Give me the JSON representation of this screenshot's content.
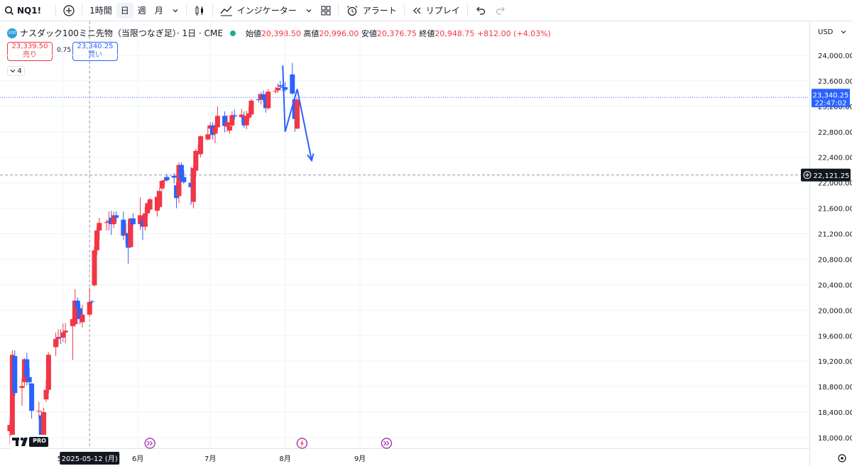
{
  "toolbar": {
    "symbol": "NQ1!",
    "timeframe": "1時間",
    "day": "日",
    "week": "週",
    "month": "月",
    "indicators": "インジケーター",
    "alert": "アラート",
    "replay": "リプレイ"
  },
  "legend": {
    "badge": "100",
    "title": "ナスダック100ミニ先物（当限つなぎ足）· 1日 · CME",
    "open_label": "始値",
    "open": "20,398.50",
    "high_label": "高値",
    "high": "20,996.00",
    "low_label": "安値",
    "low": "20,376.75",
    "close_label": "終値",
    "close": "20,948.75",
    "change": "+812.00 (+4.03%)"
  },
  "trade": {
    "sell_price": "23,339.50",
    "sell_label": "売り",
    "spread": "0.75",
    "buy_price": "23,340.25",
    "buy_label": "買い"
  },
  "collapse_count": "4",
  "currency": "USD",
  "logo_text": "PRO",
  "colors": {
    "up": "#f23645",
    "down": "#2962ff",
    "accent": "#2962ff",
    "event": "#9c27b0"
  },
  "chart_data": {
    "type": "candlestick",
    "y_ticks": [
      "24,000.00",
      "23,600.00",
      "23,200.00",
      "22,800.00",
      "22,400.00",
      "22,000.00",
      "21,600.00",
      "21,200.00",
      "20,800.00",
      "20,400.00",
      "20,000.00",
      "19,600.00",
      "19,200.00",
      "18,800.00",
      "18,400.00",
      "18,000.00"
    ],
    "y_range": [
      17900,
      24250
    ],
    "x_labels": [
      {
        "label": "5月",
        "date": "2025-05-01"
      },
      {
        "label": "6月",
        "date": "2025-06-01"
      },
      {
        "label": "7月",
        "date": "2025-07-01"
      },
      {
        "label": "8月",
        "date": "2025-08-01"
      },
      {
        "label": "9月",
        "date": "2025-09-01"
      }
    ],
    "crosshair_date_label": "2025-05-12 (月)",
    "last_price_label": "23,340.25",
    "last_price": 23340.25,
    "countdown": "22:47:02",
    "crosshair_price_label": "22,121.25",
    "crosshair_price": 22121.25,
    "events": [
      "earnings",
      "dividend",
      "earnings"
    ],
    "candles": [
      {
        "o": 18100,
        "h": 18280,
        "l": 17900,
        "c": 18200
      },
      {
        "o": 18000,
        "h": 19370,
        "l": 17870,
        "c": 19300
      },
      {
        "o": 19280,
        "h": 19370,
        "l": 18650,
        "c": 18700
      },
      {
        "o": 18780,
        "h": 18930,
        "l": 18500,
        "c": 18810
      },
      {
        "o": 18870,
        "h": 19250,
        "l": 18800,
        "c": 19230
      },
      {
        "o": 19230,
        "h": 19330,
        "l": 18820,
        "c": 18950
      },
      {
        "o": 18950,
        "h": 19100,
        "l": 18820,
        "c": 18870
      },
      {
        "o": 18850,
        "h": 18860,
        "l": 18300,
        "c": 18420
      },
      {
        "o": 18420,
        "h": 18560,
        "l": 18290,
        "c": 18420
      },
      {
        "o": 18350,
        "h": 18420,
        "l": 17870,
        "c": 18030
      },
      {
        "o": 17920,
        "h": 18470,
        "l": 17900,
        "c": 18400
      },
      {
        "o": 18600,
        "h": 18900,
        "l": 18560,
        "c": 18750
      },
      {
        "o": 18750,
        "h": 19340,
        "l": 18700,
        "c": 19300
      },
      {
        "o": 19420,
        "h": 19650,
        "l": 19280,
        "c": 19550
      },
      {
        "o": 19550,
        "h": 19700,
        "l": 19450,
        "c": 19580
      },
      {
        "o": 19580,
        "h": 19700,
        "l": 19470,
        "c": 19570
      },
      {
        "o": 19570,
        "h": 19790,
        "l": 19500,
        "c": 19650
      },
      {
        "o": 19650,
        "h": 19800,
        "l": 19480,
        "c": 19680
      },
      {
        "o": 19750,
        "h": 20150,
        "l": 19220,
        "c": 19860
      },
      {
        "o": 19780,
        "h": 20330,
        "l": 19740,
        "c": 20150
      },
      {
        "o": 20150,
        "h": 20200,
        "l": 19890,
        "c": 20030
      },
      {
        "o": 20030,
        "h": 20100,
        "l": 19780,
        "c": 19860
      },
      {
        "o": 19810,
        "h": 20080,
        "l": 19730,
        "c": 19930
      },
      {
        "o": 19930,
        "h": 20350,
        "l": 19900,
        "c": 20130
      },
      {
        "o": 20140,
        "h": 20160,
        "l": 20100,
        "c": 20130
      },
      {
        "o": 20390,
        "h": 21000,
        "l": 20370,
        "c": 20940
      },
      {
        "o": 20940,
        "h": 21300,
        "l": 20860,
        "c": 21250
      },
      {
        "o": 21250,
        "h": 21450,
        "l": 21100,
        "c": 21370
      },
      {
        "o": 21370,
        "h": 21420,
        "l": 21250,
        "c": 21380
      },
      {
        "o": 21380,
        "h": 21550,
        "l": 21250,
        "c": 21400
      },
      {
        "o": 21450,
        "h": 21560,
        "l": 21180,
        "c": 21350
      },
      {
        "o": 21350,
        "h": 21550,
        "l": 21290,
        "c": 21490
      },
      {
        "o": 21490,
        "h": 21550,
        "l": 21380,
        "c": 21450
      },
      {
        "o": 21420,
        "h": 21550,
        "l": 21100,
        "c": 21170
      },
      {
        "o": 21170,
        "h": 21350,
        "l": 21050,
        "c": 21210
      },
      {
        "o": 21210,
        "h": 21400,
        "l": 20730,
        "c": 20980
      },
      {
        "o": 20990,
        "h": 21450,
        "l": 20980,
        "c": 21440
      },
      {
        "o": 21440,
        "h": 21520,
        "l": 21330,
        "c": 21350
      },
      {
        "o": 21350,
        "h": 21770,
        "l": 21260,
        "c": 21490
      },
      {
        "o": 21410,
        "h": 21470,
        "l": 21100,
        "c": 21310
      },
      {
        "o": 21310,
        "h": 21620,
        "l": 21250,
        "c": 21520
      },
      {
        "o": 21520,
        "h": 21700,
        "l": 21480,
        "c": 21680
      },
      {
        "o": 21580,
        "h": 21760,
        "l": 21560,
        "c": 21740
      },
      {
        "o": 21560,
        "h": 21880,
        "l": 21470,
        "c": 21780
      },
      {
        "o": 21620,
        "h": 21920,
        "l": 21600,
        "c": 21870
      },
      {
        "o": 21910,
        "h": 22040,
        "l": 21880,
        "c": 22030
      },
      {
        "o": 22030,
        "h": 22090,
        "l": 21950,
        "c": 22040
      },
      {
        "o": 22090,
        "h": 22140,
        "l": 22020,
        "c": 22040
      },
      {
        "o": 22110,
        "h": 22150,
        "l": 21990,
        "c": 22080
      },
      {
        "o": 21960,
        "h": 22010,
        "l": 21600,
        "c": 21760
      },
      {
        "o": 21790,
        "h": 22320,
        "l": 21680,
        "c": 22280
      },
      {
        "o": 22280,
        "h": 22320,
        "l": 22010,
        "c": 22040
      },
      {
        "o": 22090,
        "h": 22200,
        "l": 21980,
        "c": 22010
      },
      {
        "o": 22000,
        "h": 22250,
        "l": 21650,
        "c": 21930
      },
      {
        "o": 21700,
        "h": 22260,
        "l": 21600,
        "c": 22230
      },
      {
        "o": 22190,
        "h": 22530,
        "l": 22090,
        "c": 22500
      },
      {
        "o": 22450,
        "h": 22610,
        "l": 22440,
        "c": 22470
      },
      {
        "o": 22450,
        "h": 22740,
        "l": 22400,
        "c": 22730
      },
      {
        "o": 22680,
        "h": 22900,
        "l": 22660,
        "c": 22760
      },
      {
        "o": 22850,
        "h": 22950,
        "l": 22700,
        "c": 22900
      },
      {
        "o": 22900,
        "h": 22950,
        "l": 22680,
        "c": 22750
      },
      {
        "o": 22770,
        "h": 22930,
        "l": 22620,
        "c": 22870
      },
      {
        "o": 22870,
        "h": 23200,
        "l": 22820,
        "c": 23050
      },
      {
        "o": 23050,
        "h": 23120,
        "l": 22790,
        "c": 22890
      },
      {
        "o": 22880,
        "h": 23060,
        "l": 22800,
        "c": 22950
      },
      {
        "o": 22820,
        "h": 22930,
        "l": 22770,
        "c": 22890
      },
      {
        "o": 22900,
        "h": 23120,
        "l": 22870,
        "c": 23060
      },
      {
        "o": 23060,
        "h": 23150,
        "l": 22990,
        "c": 23040
      },
      {
        "o": 23030,
        "h": 23160,
        "l": 23000,
        "c": 23070
      },
      {
        "o": 23030,
        "h": 23120,
        "l": 22860,
        "c": 22900
      },
      {
        "o": 22900,
        "h": 23130,
        "l": 22840,
        "c": 23050
      },
      {
        "o": 23020,
        "h": 23200,
        "l": 22970,
        "c": 23090
      },
      {
        "o": 23070,
        "h": 23310,
        "l": 23060,
        "c": 23290
      },
      {
        "o": 23310,
        "h": 23400,
        "l": 23260,
        "c": 23300
      },
      {
        "o": 23300,
        "h": 23420,
        "l": 23230,
        "c": 23390
      },
      {
        "o": 23390,
        "h": 23450,
        "l": 23260,
        "c": 23310
      },
      {
        "o": 23320,
        "h": 23420,
        "l": 23100,
        "c": 23170
      },
      {
        "o": 23170,
        "h": 23470,
        "l": 23140,
        "c": 23430
      },
      {
        "o": 23430,
        "h": 23500,
        "l": 23400,
        "c": 23440
      },
      {
        "o": 23450,
        "h": 23560,
        "l": 23410,
        "c": 23490
      },
      {
        "o": 23530,
        "h": 23600,
        "l": 23450,
        "c": 23510
      },
      {
        "o": 23500,
        "h": 23550,
        "l": 23440,
        "c": 23490
      },
      {
        "o": 23500,
        "h": 23580,
        "l": 23430,
        "c": 23460
      },
      {
        "o": 23700,
        "h": 23880,
        "l": 23380,
        "c": 23400
      },
      {
        "o": 23310,
        "h": 23340,
        "l": 22800,
        "c": 23000
      },
      {
        "o": 22850,
        "h": 23330,
        "l": 22840,
        "c": 23300
      }
    ],
    "drawing": [
      {
        "date": "2025-07-31",
        "price": 23840
      },
      {
        "date": "2025-08-01",
        "price": 22800
      },
      {
        "date": "2025-08-06",
        "price": 23470
      },
      {
        "date": "2025-08-12",
        "price": 22350
      }
    ]
  }
}
